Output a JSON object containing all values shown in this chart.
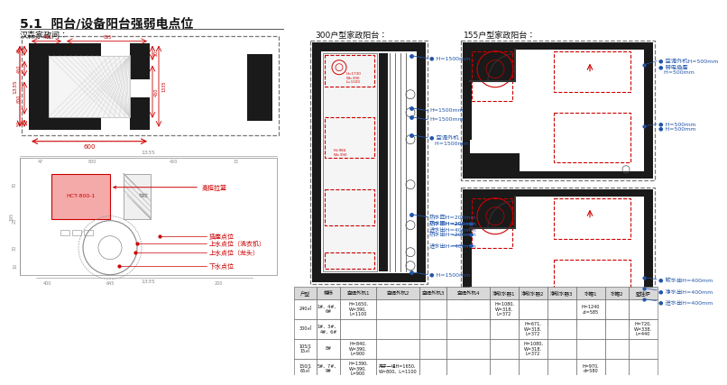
{
  "title": "5.1  阳台/设备阳台强弱电点位",
  "title_fontsize": 10,
  "bg_color": "#ffffff",
  "left_top_label": "汉森家政间：",
  "mid_label": "300户型家政阳台：",
  "right_label": "155户型家政阳台：",
  "table_headers": [
    "户型",
    "楼栋",
    "空调外机1",
    "空调外机2",
    "空调外机3",
    "空调外机4",
    "净软水器1",
    "净软水器2",
    "净软水器3",
    "水箱1",
    "水箱2",
    "壁挂炉"
  ],
  "table_rows": [
    [
      "240㎡",
      "1#、4#、\n6#",
      "H=1650,\nW=390,\nL=1100",
      "",
      "",
      "",
      "H=1080,\nW=318,\nL=372",
      "",
      "",
      "H=1240\n,d=585",
      "",
      ""
    ],
    [
      "300㎡",
      "1#、3#、\n4#、6#",
      "",
      "",
      "",
      "",
      "",
      "H=671,\nW=318,\nL=372",
      "",
      "",
      "",
      "H=720,\nW=338,\nL=440"
    ],
    [
      "105/1\n15㎡",
      "8#",
      "H=840,\nW=390,\nL=900",
      "",
      "",
      "",
      "",
      "H=1080,\nW=318,\nL=372",
      "",
      "",
      "",
      ""
    ],
    [
      "150/1\n65㎡",
      "5#、7#、\n9#",
      "H=1390,\nW=390,\nL=900",
      "用于一组H=1650,\nW=800、L=1100",
      "",
      "",
      "",
      "",
      "",
      "H=970,\nd=580",
      "",
      ""
    ]
  ],
  "red": "#cc0000",
  "blue": "#2255aa",
  "dark": "#1a1a1a",
  "gray": "#555555",
  "light_gray": "#888888"
}
